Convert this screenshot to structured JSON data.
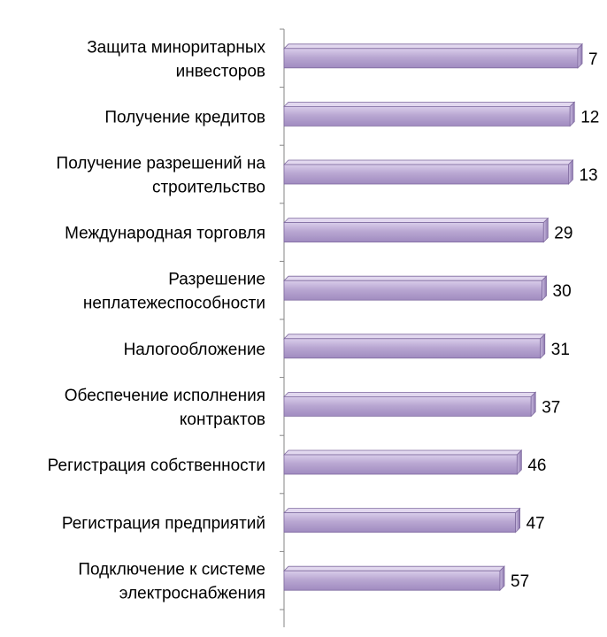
{
  "chart_data": {
    "type": "bar",
    "orientation": "horizontal",
    "categories": [
      "Защита миноритарных инвесторов",
      "Получение кредитов",
      "Получение разрешений на строительство",
      "Международная торговля",
      "Разрешение неплатежеспособности",
      "Налогообложение",
      "Обеспечение исполнения контрактов",
      "Регистрация собственности",
      "Регистрация предприятий",
      "Подключение к системе электроснабжения"
    ],
    "category_lines": [
      [
        "Защита миноритарных",
        "инвесторов"
      ],
      [
        "Получение кредитов"
      ],
      [
        "Получение разрешений на",
        "строительство"
      ],
      [
        "Международная торговля"
      ],
      [
        "Разрешение",
        "неплатежеспособности"
      ],
      [
        "Налогообложение"
      ],
      [
        "Обеспечение исполнения",
        "контрактов"
      ],
      [
        "Регистрация собственности"
      ],
      [
        "Регистрация предприятий"
      ],
      [
        "Подключение к системе",
        "электроснабжения"
      ]
    ],
    "values": [
      7,
      12,
      13,
      29,
      30,
      31,
      37,
      46,
      47,
      57
    ],
    "data_labels": [
      "7",
      "12",
      "13",
      "29",
      "30",
      "31",
      "37",
      "46",
      "47",
      "57"
    ],
    "bar_color": "#B3A2C7",
    "bar_edge_color": "#7F6A9F",
    "axis_reversed": true,
    "x_axis_visible": false,
    "gridlines": false,
    "legend": "none"
  }
}
